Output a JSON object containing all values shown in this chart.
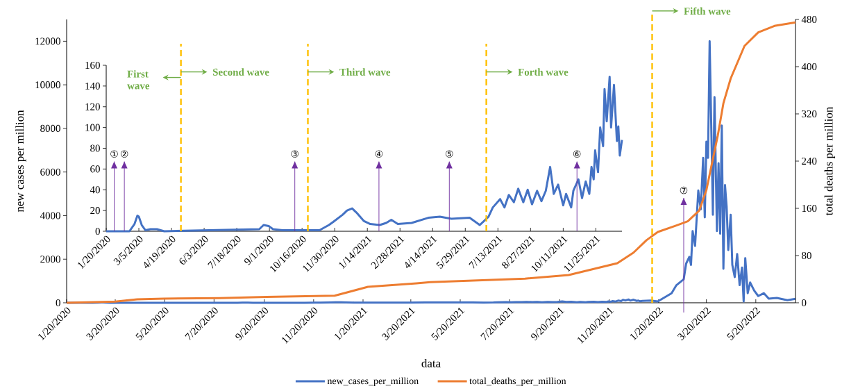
{
  "chart_data": [
    {
      "type": "line",
      "xlabel": "data",
      "ylabel": "new cases per million",
      "y2label": "total deaths per million",
      "series": [
        {
          "name": "new_cases_per_million",
          "color": "#4472c4",
          "x": [
            "2020-01-20",
            "2020-02-21",
            "2020-02-28",
            "2020-03-03",
            "2020-03-05",
            "2020-03-09",
            "2020-03-14",
            "2020-03-21",
            "2020-03-30",
            "2020-04-09",
            "2020-08-18",
            "2020-08-24",
            "2020-08-31",
            "2020-09-06",
            "2020-09-19",
            "2020-11-09",
            "2020-11-22",
            "2020-11-28",
            "2020-12-11",
            "2020-12-17",
            "2020-12-24",
            "2020-12-30",
            "2021-01-09",
            "2021-01-18",
            "2021-01-31",
            "2021-02-09",
            "2021-02-16",
            "2021-02-25",
            "2021-03-16",
            "2021-04-08",
            "2021-04-24",
            "2021-05-10",
            "2021-06-04",
            "2021-06-18",
            "2021-06-30",
            "2021-07-06",
            "2021-07-16",
            "2021-07-22",
            "2021-07-28",
            "2021-08-04",
            "2021-08-10",
            "2021-08-17",
            "2021-08-23",
            "2021-08-29",
            "2021-09-05",
            "2021-09-11",
            "2021-09-17",
            "2021-09-23",
            "2021-09-28",
            "2021-10-04",
            "2021-10-11",
            "2021-10-15",
            "2021-10-22",
            "2021-10-25",
            "2021-11-01",
            "2021-11-06",
            "2021-11-11",
            "2021-11-16",
            "2021-11-19",
            "2021-11-22",
            "2021-11-24",
            "2021-11-28",
            "2021-12-01",
            "2021-12-05",
            "2021-12-07",
            "2021-12-10",
            "2021-12-14",
            "2021-12-16",
            "2021-12-20",
            "2021-12-24",
            "2021-12-26",
            "2021-12-28",
            "2021-12-31",
            "2022-01-10",
            "2022-01-19",
            "2022-02-05",
            "2022-02-11",
            "2022-02-20",
            "2022-02-23",
            "2022-02-27",
            "2022-03-01",
            "2022-03-03",
            "2022-03-06",
            "2022-03-10",
            "2022-03-13",
            "2022-03-16",
            "2022-03-18",
            "2022-03-20",
            "2022-03-22",
            "2022-03-24",
            "2022-03-27",
            "2022-03-28",
            "2022-03-30",
            "2022-04-02",
            "2022-04-04",
            "2022-04-06",
            "2022-04-08",
            "2022-04-10",
            "2022-04-12",
            "2022-04-14",
            "2022-04-16",
            "2022-04-19",
            "2022-04-21",
            "2022-04-24",
            "2022-04-27",
            "2022-04-30",
            "2022-05-03",
            "2022-05-05",
            "2022-05-07",
            "2022-05-10",
            "2022-05-13",
            "2022-05-18",
            "2022-05-23",
            "2022-05-30",
            "2022-06-05",
            "2022-06-15",
            "2022-06-28",
            "2022-07-08"
          ],
          "values": [
            0,
            0,
            7,
            15,
            14,
            6,
            1,
            2,
            2,
            0,
            2,
            6,
            5,
            2,
            1,
            1,
            6,
            9,
            16,
            20,
            22,
            18,
            10,
            7,
            6,
            8,
            11,
            7,
            8,
            13,
            14,
            12,
            13,
            6,
            14,
            23,
            31,
            23,
            35,
            28,
            41,
            28,
            40,
            26,
            39,
            29,
            39,
            62,
            36,
            45,
            25,
            36,
            23,
            39,
            50,
            32,
            48,
            36,
            62,
            50,
            78,
            57,
            100,
            82,
            137,
            106,
            149,
            100,
            141,
            87,
            101,
            73,
            88,
            100,
            62,
            440,
            810,
            1080,
            1800,
            2110,
            1740,
            3290,
            2610,
            5150,
            4290,
            6650,
            3920,
            7390,
            6650,
            12000,
            6160,
            4040,
            9440,
            3290,
            6400,
            3170,
            8130,
            1560,
            5400,
            4410,
            2420,
            4040,
            1740,
            1180,
            2240,
            810,
            1620,
            60,
            2050,
            440,
            930,
            560,
            310,
            440,
            190,
            220,
            120,
            180
          ]
        },
        {
          "name": "total_deaths_per_million",
          "color": "#ed7d31",
          "axis": "y2",
          "x": [
            "2020-01-20",
            "2020-03-20",
            "2020-04-16",
            "2020-05-19",
            "2020-07-27",
            "2020-09-23",
            "2020-12-16",
            "2021-01-26",
            "2021-03-27",
            "2021-04-13",
            "2021-08-08",
            "2021-10-01",
            "2021-11-30",
            "2021-12-20",
            "2022-01-05",
            "2022-01-19",
            "2022-02-11",
            "2022-02-25",
            "2022-03-11",
            "2022-03-20",
            "2022-03-27",
            "2022-04-03",
            "2022-04-10",
            "2022-04-19",
            "2022-05-06",
            "2022-05-23",
            "2022-06-12",
            "2022-07-08"
          ],
          "values": [
            0,
            2,
            6,
            7,
            8,
            10,
            12,
            27,
            33,
            35,
            41,
            47,
            67,
            85,
            106,
            120,
            131,
            138,
            156,
            191,
            237,
            283,
            338,
            380,
            435,
            458,
            469,
            475
          ]
        }
      ],
      "xlim": [
        "2020-01-20",
        "2022-07-08"
      ],
      "xticks": [
        {
          "value": "2020-01-20",
          "label": "1/20/2020"
        },
        {
          "value": "2020-03-20",
          "label": "3/20/2020"
        },
        {
          "value": "2020-05-20",
          "label": "5/20/2020"
        },
        {
          "value": "2020-07-20",
          "label": "7/20/2020"
        },
        {
          "value": "2020-09-20",
          "label": "9/20/2020"
        },
        {
          "value": "2020-11-20",
          "label": "11/20/2020"
        },
        {
          "value": "2021-01-20",
          "label": "1/20/2021"
        },
        {
          "value": "2021-03-20",
          "label": "3/20/2021"
        },
        {
          "value": "2021-05-20",
          "label": "5/20/2021"
        },
        {
          "value": "2021-07-20",
          "label": "7/20/2021"
        },
        {
          "value": "2021-09-20",
          "label": "9/20/2021"
        },
        {
          "value": "2021-11-20",
          "label": "11/20/2021"
        },
        {
          "value": "2022-01-20",
          "label": "1/20/2022"
        },
        {
          "value": "2022-03-20",
          "label": "3/20/2022"
        },
        {
          "value": "2022-05-20",
          "label": "5/20/2022"
        }
      ],
      "ylim": [
        0,
        13000
      ],
      "yticks": [
        0,
        2000,
        4000,
        6000,
        8000,
        10000,
        12000
      ],
      "y2lim": [
        0,
        480
      ],
      "y2ticks": [
        0,
        80,
        160,
        240,
        320,
        400,
        480
      ],
      "legend": "bottom",
      "ref_lines": [
        {
          "axis": "x",
          "value": "2022-01-12",
          "label": "Fifth wave",
          "color": "#ffc000",
          "line_style": "dashed"
        },
        {
          "axis": "x",
          "value": "2022-02-20",
          "label": "⑦",
          "color": "#7030a0",
          "line_style": "solid"
        }
      ]
    },
    {
      "type": "line",
      "series": [
        {
          "color": "#4472c4",
          "x": [
            "2020-01-20",
            "2020-02-21",
            "2020-02-28",
            "2020-03-03",
            "2020-03-05",
            "2020-03-09",
            "2020-03-14",
            "2020-03-21",
            "2020-03-30",
            "2020-04-09",
            "2020-08-18",
            "2020-08-24",
            "2020-08-31",
            "2020-09-06",
            "2020-09-19",
            "2020-11-09",
            "2020-11-22",
            "2020-11-28",
            "2020-12-11",
            "2020-12-17",
            "2020-12-24",
            "2020-12-30",
            "2021-01-09",
            "2021-01-18",
            "2021-01-31",
            "2021-02-09",
            "2021-02-16",
            "2021-02-25",
            "2021-03-16",
            "2021-04-08",
            "2021-04-24",
            "2021-05-10",
            "2021-06-04",
            "2021-06-18",
            "2021-06-30",
            "2021-07-06",
            "2021-07-16",
            "2021-07-22",
            "2021-07-28",
            "2021-08-04",
            "2021-08-10",
            "2021-08-17",
            "2021-08-23",
            "2021-08-29",
            "2021-09-05",
            "2021-09-11",
            "2021-09-17",
            "2021-09-23",
            "2021-09-28",
            "2021-10-04",
            "2021-10-11",
            "2021-10-15",
            "2021-10-22",
            "2021-10-25",
            "2021-11-01",
            "2021-11-06",
            "2021-11-11",
            "2021-11-16",
            "2021-11-19",
            "2021-11-22",
            "2021-11-24",
            "2021-11-28",
            "2021-12-01",
            "2021-12-05",
            "2021-12-07",
            "2021-12-10",
            "2021-12-14",
            "2021-12-16",
            "2021-12-20",
            "2021-12-24",
            "2021-12-26",
            "2021-12-28",
            "2021-12-31"
          ],
          "values": [
            0,
            0,
            7,
            15,
            14,
            6,
            1,
            2,
            2,
            0,
            2,
            6,
            5,
            2,
            1,
            1,
            6,
            9,
            16,
            20,
            22,
            18,
            10,
            7,
            6,
            8,
            11,
            7,
            8,
            13,
            14,
            12,
            13,
            6,
            14,
            23,
            31,
            23,
            35,
            28,
            41,
            28,
            40,
            26,
            39,
            29,
            39,
            62,
            36,
            45,
            25,
            36,
            23,
            39,
            50,
            32,
            48,
            36,
            62,
            50,
            78,
            57,
            100,
            82,
            137,
            106,
            149,
            100,
            141,
            87,
            101,
            73,
            88
          ]
        }
      ],
      "xlim": [
        "2020-01-20",
        "2021-12-31"
      ],
      "xticks": [
        {
          "value": "2020-01-20",
          "label": "1/20/2020"
        },
        {
          "value": "2020-03-05",
          "label": "3/5/2020"
        },
        {
          "value": "2020-04-19",
          "label": "4/19/2020"
        },
        {
          "value": "2020-06-03",
          "label": "6/3/2020"
        },
        {
          "value": "2020-07-18",
          "label": "7/18/2020"
        },
        {
          "value": "2020-09-01",
          "label": "9/1/2020"
        },
        {
          "value": "2020-10-16",
          "label": "10/16/2020"
        },
        {
          "value": "2020-11-30",
          "label": "11/30/2020"
        },
        {
          "value": "2021-01-14",
          "label": "1/14/2021"
        },
        {
          "value": "2021-02-28",
          "label": "2/28/2021"
        },
        {
          "value": "2021-04-14",
          "label": "4/14/2021"
        },
        {
          "value": "2021-05-29",
          "label": "5/29/2021"
        },
        {
          "value": "2021-07-13",
          "label": "7/13/2021"
        },
        {
          "value": "2021-08-27",
          "label": "8/27/2021"
        },
        {
          "value": "2021-10-11",
          "label": "10/11/2021"
        },
        {
          "value": "2021-11-25",
          "label": "11/25/2021"
        }
      ],
      "ylim": [
        0,
        160
      ],
      "yticks": [
        0,
        20,
        40,
        60,
        80,
        100,
        120,
        140,
        160
      ],
      "ref_lines": [
        {
          "axis": "x",
          "value": "2020-05-02",
          "label": "Second wave",
          "color": "#ffc000",
          "line_style": "dashed"
        },
        {
          "axis": "x",
          "value": "2020-10-24",
          "label": "Third wave",
          "color": "#ffc000",
          "line_style": "dashed"
        },
        {
          "axis": "x",
          "value": "2021-06-27",
          "label": "Forth wave",
          "color": "#ffc000",
          "line_style": "dashed"
        },
        {
          "axis": "x",
          "value": "2020-01-31",
          "label": "①",
          "color": "#7030a0",
          "line_style": "solid"
        },
        {
          "axis": "x",
          "value": "2020-02-14",
          "label": "②",
          "color": "#7030a0",
          "line_style": "solid"
        },
        {
          "axis": "x",
          "value": "2020-10-06",
          "label": "③",
          "color": "#7030a0",
          "line_style": "solid"
        },
        {
          "axis": "x",
          "value": "2021-01-30",
          "label": "④",
          "color": "#7030a0",
          "line_style": "solid"
        },
        {
          "axis": "x",
          "value": "2021-05-07",
          "label": "⑤",
          "color": "#7030a0",
          "line_style": "solid"
        },
        {
          "axis": "x",
          "value": "2021-10-30",
          "label": "⑥",
          "color": "#7030a0",
          "line_style": "solid"
        }
      ],
      "annotations": [
        "First wave"
      ]
    }
  ]
}
